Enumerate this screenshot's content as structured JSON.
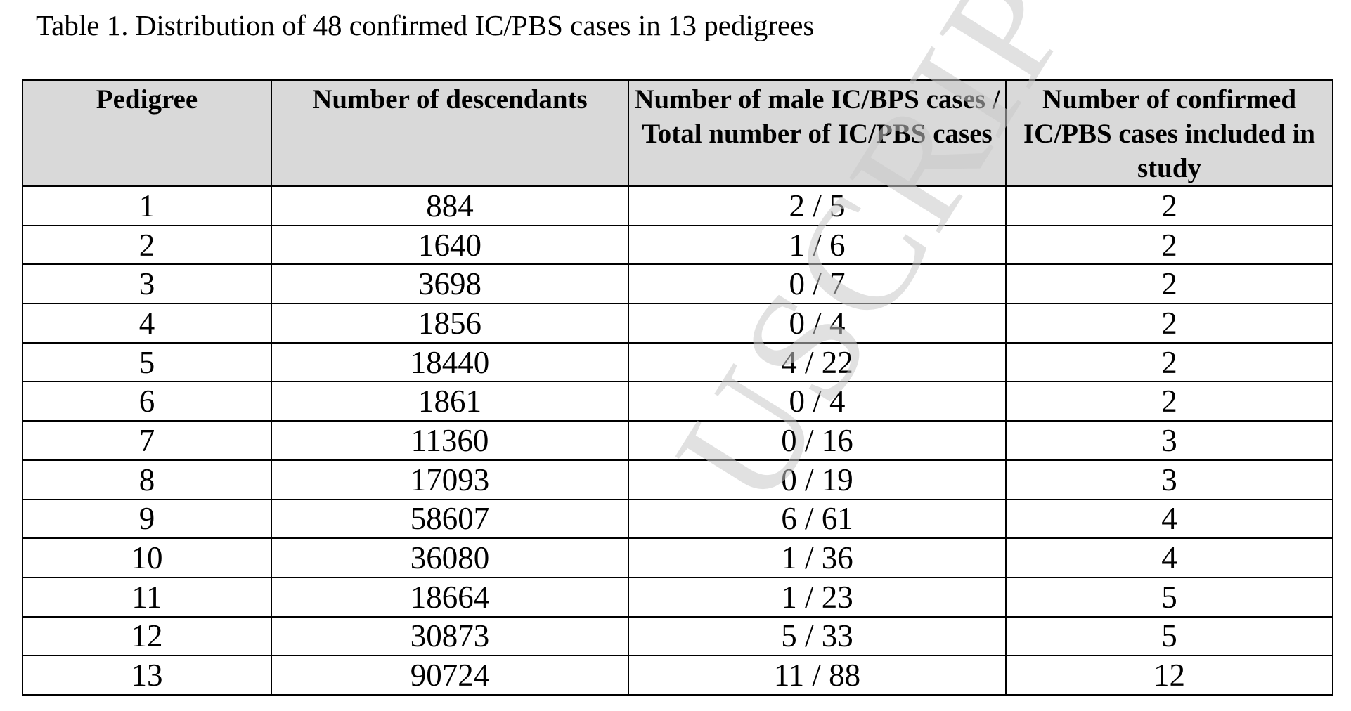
{
  "title": "Table 1.  Distribution of 48 confirmed IC/PBS cases in 13 pedigrees",
  "table": {
    "columns": [
      "Pedigree",
      "Number of descendants",
      "Number of male IC/BPS cases / Total number of IC/PBS cases",
      "Number of confirmed IC/PBS cases included in study"
    ],
    "rows": [
      [
        1,
        884,
        "2 / 5",
        2
      ],
      [
        2,
        1640,
        "1 / 6",
        2
      ],
      [
        3,
        3698,
        "0 / 7",
        2
      ],
      [
        4,
        1856,
        "0 / 4",
        2
      ],
      [
        5,
        18440,
        "4 / 22",
        2
      ],
      [
        6,
        1861,
        "0 / 4",
        2
      ],
      [
        7,
        11360,
        "0 / 16",
        3
      ],
      [
        8,
        17093,
        "0 / 19",
        3
      ],
      [
        9,
        58607,
        "6 / 61",
        4
      ],
      [
        10,
        36080,
        "1 / 36",
        4
      ],
      [
        11,
        18664,
        "1 / 23",
        5
      ],
      [
        12,
        30873,
        "5 / 33",
        5
      ],
      [
        13,
        90724,
        "11 / 88",
        12
      ]
    ]
  },
  "watermark": "USCRIPT"
}
